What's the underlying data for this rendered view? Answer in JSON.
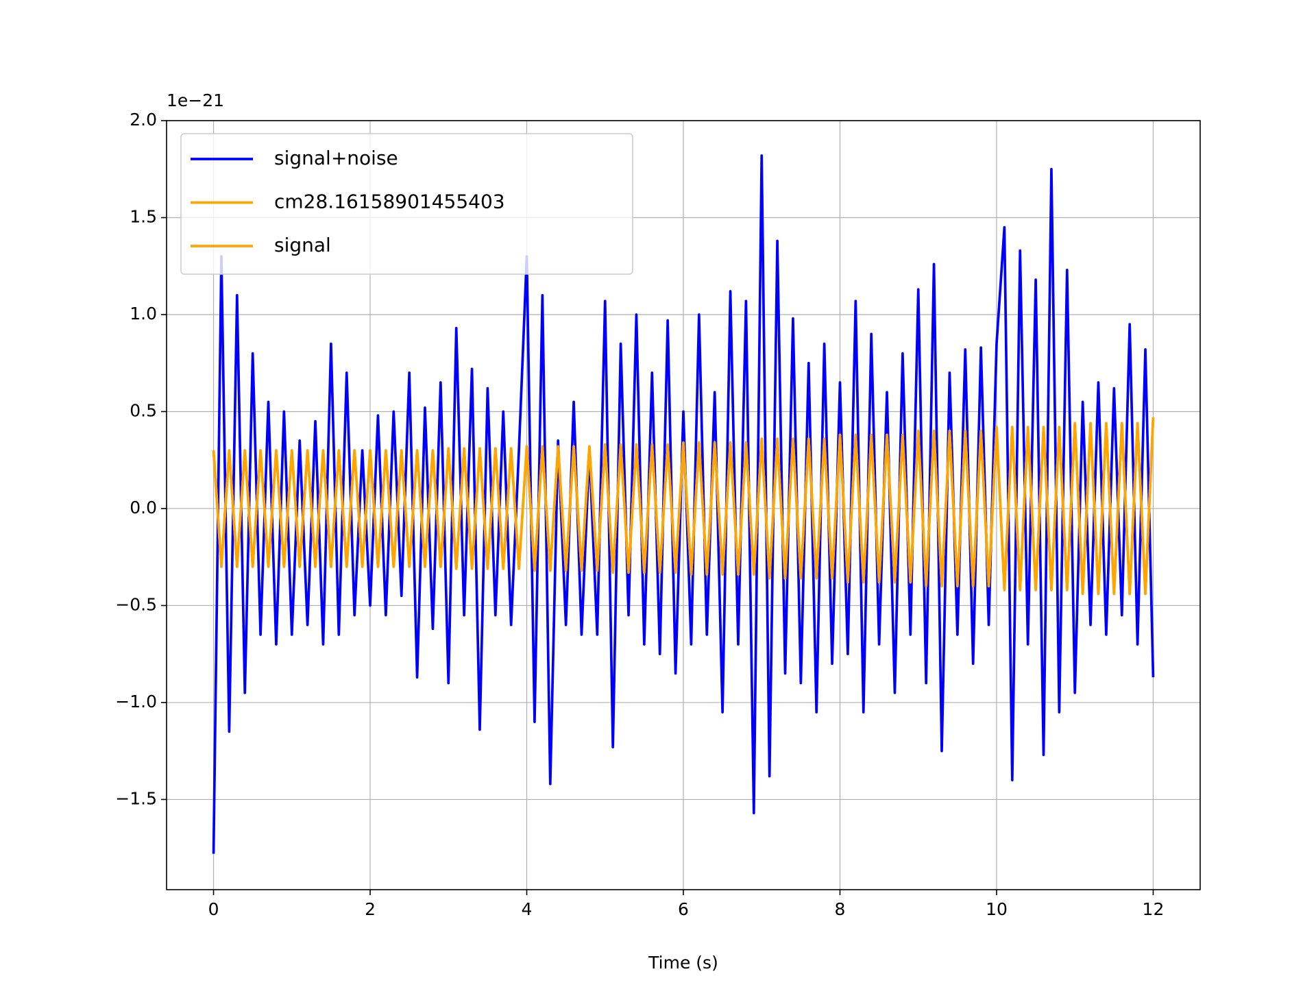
{
  "chart_data": {
    "type": "line",
    "xlabel": "Time (s)",
    "y_offset_label": "1e−21",
    "xlim": [
      -0.6,
      12.6
    ],
    "ylim": [
      -1.965,
      2.0
    ],
    "xticks": [
      0,
      2,
      4,
      6,
      8,
      10,
      12
    ],
    "yticks": [
      {
        "value": -1.5,
        "label": "−1.5"
      },
      {
        "value": -1.0,
        "label": "−1.0"
      },
      {
        "value": -0.5,
        "label": "−0.5"
      },
      {
        "value": 0,
        "label": "0.0"
      },
      0.5,
      {
        "value": 1.0,
        "label": "1.0"
      },
      1.5,
      {
        "value": 2.0,
        "label": "2.0"
      }
    ],
    "grid": true,
    "legend": "upper left",
    "x": [
      0,
      0.1,
      0.2,
      0.3,
      0.4,
      0.5,
      0.6,
      0.7,
      0.8,
      0.9,
      1,
      1.1,
      1.2,
      1.3,
      1.4,
      1.5,
      1.6,
      1.7,
      1.8,
      1.9,
      2,
      2.1,
      2.2,
      2.3,
      2.4,
      2.5,
      2.6,
      2.7,
      2.8,
      2.9,
      3,
      3.1,
      3.2,
      3.3,
      3.4,
      3.5,
      3.6,
      3.7,
      3.8,
      3.9,
      4,
      4.1,
      4.2,
      4.3,
      4.4,
      4.5,
      4.6,
      4.7,
      4.8,
      4.9,
      5,
      5.1,
      5.2,
      5.3,
      5.4,
      5.5,
      5.6,
      5.7,
      5.8,
      5.9,
      6,
      6.1,
      6.2,
      6.3,
      6.4,
      6.5,
      6.6,
      6.7,
      6.8,
      6.9,
      7,
      7.1,
      7.2,
      7.3,
      7.4,
      7.5,
      7.6,
      7.7,
      7.8,
      7.9,
      8,
      8.1,
      8.2,
      8.3,
      8.4,
      8.5,
      8.6,
      8.7,
      8.8,
      8.9,
      9,
      9.1,
      9.2,
      9.3,
      9.4,
      9.5,
      9.6,
      9.7,
      9.8,
      9.9,
      10,
      10.1,
      10.2,
      10.3,
      10.4,
      10.5,
      10.6,
      10.7,
      10.8,
      10.9,
      11,
      11.1,
      11.2,
      11.3,
      11.4,
      11.5,
      11.6,
      11.7,
      11.8,
      11.9,
      12
    ],
    "series": [
      {
        "name": "signal+noise",
        "color": "#0000ff",
        "values": [
          -1.78,
          1.3,
          -1.15,
          1.1,
          -0.95,
          0.8,
          -0.65,
          0.55,
          -0.7,
          0.5,
          -0.65,
          0.35,
          -0.6,
          0.45,
          -0.7,
          0.85,
          -0.65,
          0.7,
          -0.55,
          0.3,
          -0.5,
          0.48,
          -0.55,
          0.5,
          -0.45,
          0.7,
          -0.87,
          0.52,
          -0.62,
          0.65,
          -0.9,
          0.93,
          -0.55,
          0.72,
          -1.14,
          0.62,
          -0.55,
          0.5,
          -0.6,
          0.3,
          1.3,
          -1.1,
          1.1,
          -1.42,
          0.35,
          -0.6,
          0.55,
          -0.65,
          0.3,
          -0.65,
          1.07,
          -1.23,
          0.85,
          -0.55,
          1.0,
          -0.7,
          0.7,
          -0.75,
          0.97,
          -0.85,
          0.5,
          -0.7,
          1.0,
          -0.65,
          0.6,
          -1.05,
          1.12,
          -0.7,
          1.07,
          -1.57,
          1.82,
          -1.38,
          1.38,
          -0.85,
          0.98,
          -0.9,
          0.75,
          -1.05,
          0.85,
          -0.8,
          0.65,
          -0.75,
          1.07,
          -1.05,
          0.9,
          -0.7,
          0.6,
          -0.95,
          0.8,
          -0.65,
          1.13,
          -0.9,
          1.26,
          -1.25,
          0.7,
          -0.65,
          0.82,
          -0.8,
          0.83,
          -0.6,
          0.85,
          1.45,
          -1.4,
          1.33,
          -0.7,
          1.18,
          -1.27,
          1.75,
          -1.05,
          1.23,
          -0.95,
          0.55,
          -0.6,
          0.65,
          -0.65,
          0.62,
          -0.55,
          0.95,
          -0.7,
          0.82,
          -0.87
        ]
      },
      {
        "name": "cm28.16158901455403",
        "color": "#ffa500",
        "values": [
          0.3,
          -0.3,
          0.3,
          -0.3,
          0.3,
          -0.3,
          0.3,
          -0.3,
          0.3,
          -0.3,
          0.3,
          -0.3,
          0.3,
          -0.3,
          0.3,
          -0.3,
          0.3,
          -0.3,
          0.3,
          -0.3,
          0.3,
          -0.3,
          0.3,
          -0.3,
          0.3,
          -0.3,
          0.3,
          -0.3,
          0.3,
          -0.3,
          0.31,
          -0.31,
          0.31,
          -0.31,
          0.31,
          -0.31,
          0.31,
          -0.31,
          0.31,
          -0.31,
          0.32,
          -0.32,
          0.32,
          -0.32,
          0.32,
          -0.32,
          0.32,
          -0.32,
          0.32,
          -0.32,
          0.33,
          -0.33,
          0.33,
          -0.33,
          0.33,
          -0.33,
          0.33,
          -0.33,
          0.33,
          -0.33,
          0.34,
          -0.34,
          0.34,
          -0.34,
          0.34,
          -0.34,
          0.34,
          -0.34,
          0.34,
          -0.34,
          0.36,
          -0.36,
          0.36,
          -0.36,
          0.36,
          -0.36,
          0.36,
          -0.36,
          0.36,
          -0.36,
          0.38,
          -0.38,
          0.38,
          -0.38,
          0.38,
          -0.38,
          0.38,
          -0.38,
          0.38,
          -0.38,
          0.4,
          -0.4,
          0.4,
          -0.4,
          0.4,
          -0.4,
          0.4,
          -0.4,
          0.4,
          -0.4,
          0.42,
          -0.42,
          0.42,
          -0.42,
          0.42,
          -0.42,
          0.42,
          -0.42,
          0.42,
          -0.42,
          0.44,
          -0.44,
          0.44,
          -0.44,
          0.44,
          -0.44,
          0.44,
          -0.44,
          0.44,
          -0.44,
          0.47
        ]
      },
      {
        "name": "signal",
        "color": "#ffa500",
        "values": [
          0.3,
          -0.3,
          0.3,
          -0.3,
          0.3,
          -0.3,
          0.3,
          -0.3,
          0.3,
          -0.3,
          0.3,
          -0.3,
          0.3,
          -0.3,
          0.3,
          -0.3,
          0.3,
          -0.3,
          0.3,
          -0.3,
          0.3,
          -0.3,
          0.3,
          -0.3,
          0.3,
          -0.3,
          0.3,
          -0.3,
          0.3,
          -0.3,
          0.31,
          -0.31,
          0.31,
          -0.31,
          0.31,
          -0.31,
          0.31,
          -0.31,
          0.31,
          -0.31,
          0.32,
          -0.32,
          0.32,
          -0.32,
          0.32,
          -0.32,
          0.32,
          -0.32,
          0.32,
          -0.32,
          0.33,
          -0.33,
          0.33,
          -0.33,
          0.33,
          -0.33,
          0.33,
          -0.33,
          0.33,
          -0.33,
          0.34,
          -0.34,
          0.34,
          -0.34,
          0.34,
          -0.34,
          0.34,
          -0.34,
          0.34,
          -0.34,
          0.36,
          -0.36,
          0.36,
          -0.36,
          0.36,
          -0.36,
          0.36,
          -0.36,
          0.36,
          -0.36,
          0.38,
          -0.38,
          0.38,
          -0.38,
          0.38,
          -0.38,
          0.38,
          -0.38,
          0.38,
          -0.38,
          0.4,
          -0.4,
          0.4,
          -0.4,
          0.4,
          -0.4,
          0.4,
          -0.4,
          0.4,
          -0.4,
          0.42,
          -0.42,
          0.42,
          -0.42,
          0.42,
          -0.42,
          0.42,
          -0.42,
          0.42,
          -0.42,
          0.44,
          -0.44,
          0.44,
          -0.44,
          0.44,
          -0.44,
          0.44,
          -0.44,
          0.44,
          -0.44,
          0.47
        ]
      }
    ]
  }
}
